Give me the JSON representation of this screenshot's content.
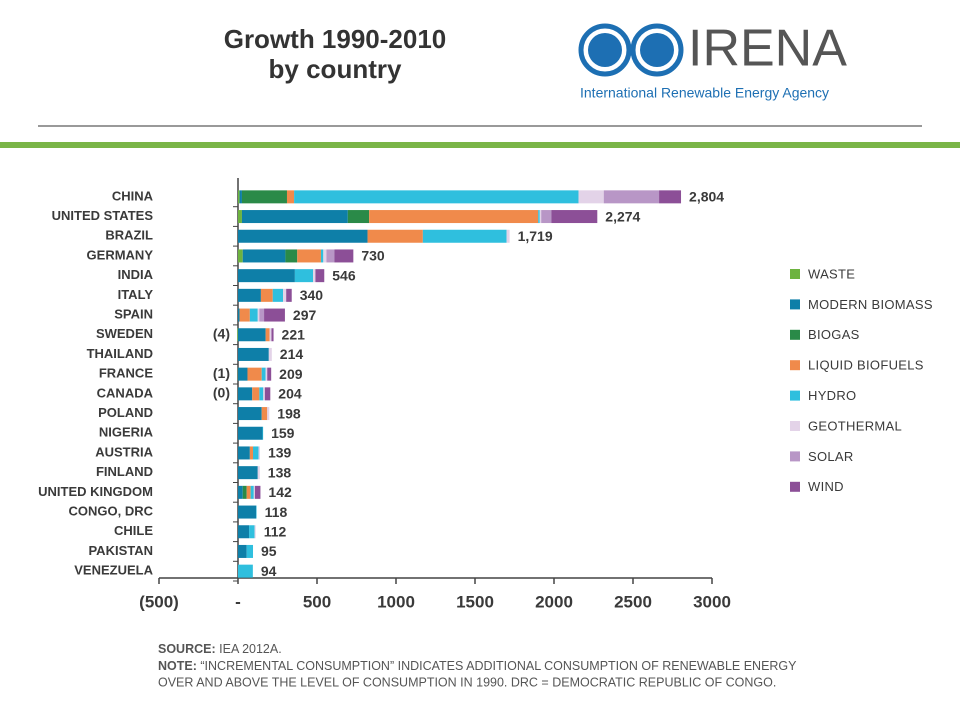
{
  "header": {
    "title": [
      "Growth 1990-2010",
      "by country"
    ],
    "logo_name": "IRENA",
    "logo_tagline": "International Renewable Energy Agency"
  },
  "chart_data": {
    "type": "stacked_barh",
    "categories": [
      "CHINA",
      "UNITED STATES",
      "BRAZIL",
      "GERMANY",
      "INDIA",
      "ITALY",
      "SPAIN",
      "SWEDEN",
      "THAILAND",
      "FRANCE",
      "CANADA",
      "POLAND",
      "NIGERIA",
      "AUSTRIA",
      "FINLAND",
      "UNITED KINGDOM",
      "CONGO, DRC",
      "CHILE",
      "PAKISTAN",
      "VENEZUELA"
    ],
    "series": [
      {
        "name": "WASTE",
        "color": "#6db33f",
        "values": [
          10,
          25,
          0,
          30,
          0,
          0,
          0,
          -4,
          0,
          -1,
          -0.4,
          0,
          0,
          0,
          0,
          0,
          0,
          0,
          0,
          0
        ],
        "value_labels": [
          null,
          null,
          null,
          null,
          null,
          null,
          null,
          "(4)",
          null,
          "(1)",
          "(0)",
          null,
          null,
          null,
          null,
          null,
          null,
          null,
          null,
          null
        ]
      },
      {
        "name": "MODERN BIOMASS",
        "color": "#0e7fa8",
        "values": [
          15,
          670,
          820,
          270,
          360,
          145,
          10,
          175,
          195,
          60,
          90,
          150,
          155,
          75,
          125,
          30,
          115,
          70,
          55,
          0
        ]
      },
      {
        "name": "BIOGAS",
        "color": "#2a8a48",
        "values": [
          285,
          135,
          0,
          75,
          0,
          0,
          0,
          0,
          0,
          0,
          0,
          0,
          0,
          0,
          0,
          25,
          0,
          0,
          0,
          0
        ]
      },
      {
        "name": "LIQUID BIOFUELS",
        "color": "#f08a4b",
        "values": [
          45,
          1070,
          350,
          150,
          0,
          75,
          65,
          25,
          0,
          90,
          45,
          35,
          0,
          20,
          0,
          25,
          0,
          0,
          0,
          0
        ]
      },
      {
        "name": "HYDRO",
        "color": "#2fbfde",
        "values": [
          1800,
          10,
          530,
          15,
          115,
          65,
          50,
          0,
          0,
          25,
          25,
          0,
          4,
          35,
          0,
          20,
          3,
          35,
          40,
          94
        ]
      },
      {
        "name": "GEOTHERMAL",
        "color": "#e3d3e8",
        "values": [
          160,
          9,
          19,
          20,
          15,
          20,
          10,
          12,
          19,
          10,
          10,
          13,
          0,
          9,
          13,
          7,
          0,
          7,
          0,
          0
        ]
      },
      {
        "name": "SOLAR",
        "color": "#b896c6",
        "values": [
          350,
          65,
          0,
          50,
          0,
          0,
          30,
          0,
          0,
          0,
          0,
          0,
          0,
          0,
          0,
          0,
          0,
          0,
          0,
          0
        ]
      },
      {
        "name": "WIND",
        "color": "#8c4f97",
        "values": [
          139,
          290,
          0,
          120,
          56,
          35,
          132,
          13,
          0,
          25,
          34.4,
          0,
          0,
          0,
          0,
          35,
          0,
          0,
          0,
          0
        ]
      }
    ],
    "totals": [
      2804,
      2274,
      1719,
      730,
      546,
      340,
      297,
      221,
      214,
      209,
      204,
      198,
      159,
      139,
      138,
      142,
      118,
      112,
      95,
      94
    ],
    "total_labels": [
      "2,804",
      "2,274",
      "1,719",
      "730",
      "546",
      "340",
      "297",
      "221",
      "214",
      "209",
      "204",
      "198",
      "159",
      "139",
      "138",
      "142",
      "118",
      "112",
      "95",
      "94"
    ],
    "xlim": [
      -500,
      3000
    ],
    "xticks": [
      {
        "value": -500,
        "label": "(500)"
      },
      {
        "value": 0,
        "label": "-"
      },
      500,
      1000,
      1500,
      2000,
      2500,
      3000
    ],
    "legend": "right"
  },
  "footer": {
    "source_label": "SOURCE:",
    "source": "IEA 2012A.",
    "note_label": "NOTE:",
    "note_lines": [
      "“INCREMENTAL CONSUMPTION” INDICATES ADDITIONAL CONSUMPTION OF RENEWABLE ENERGY",
      "OVER AND ABOVE THE LEVEL OF CONSUMPTION IN 1990. DRC = DEMOCRATIC REPUBLIC OF CONGO."
    ]
  }
}
